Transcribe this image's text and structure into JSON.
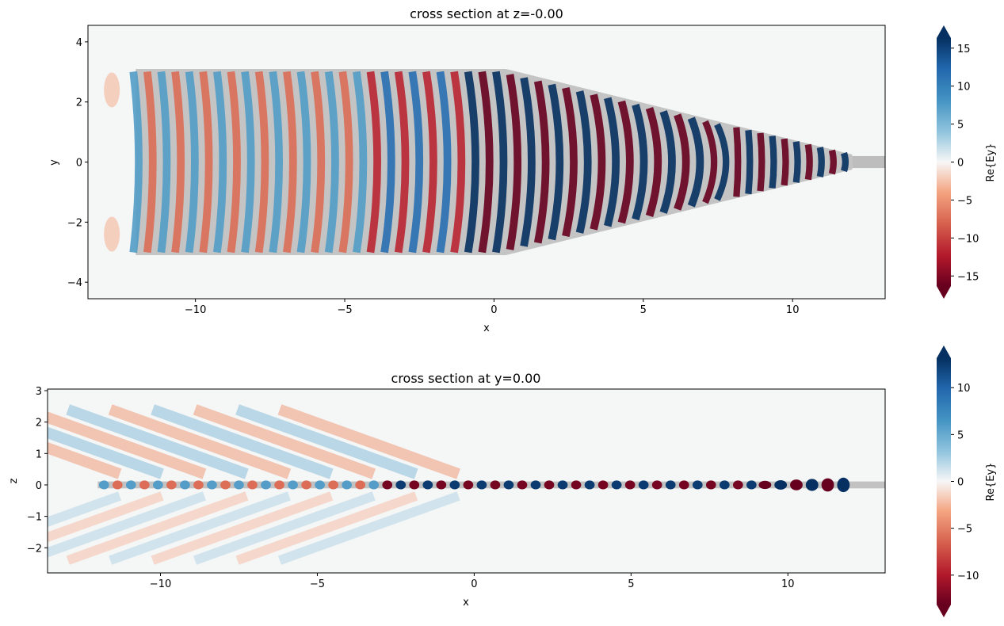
{
  "chart_data": [
    {
      "type": "heatmap",
      "title": "cross section at z=-0.00",
      "xlabel": "x",
      "ylabel": "y",
      "xlim": [
        -13.6,
        13.1
      ],
      "ylim": [
        -4.55,
        4.55
      ],
      "xticks": [
        -10,
        -5,
        0,
        5,
        10
      ],
      "xtick_labels": [
        "−10",
        "−5",
        "0",
        "5",
        "10"
      ],
      "yticks": [
        -4,
        -2,
        0,
        2,
        4
      ],
      "ytick_labels": [
        "−4",
        "−2",
        "0",
        "2",
        "4"
      ],
      "structure": {
        "name": "tapered waveguide",
        "wide_section": {
          "x_start": -12.0,
          "x_end": 0.4,
          "half_width": 3.1
        },
        "taper_end": {
          "x": 12.0,
          "half_width": 0.25
        },
        "output_waveguide": {
          "x_start": 12.0,
          "x_end": 13.1,
          "half_width": 0.2
        }
      },
      "colorbar": {
        "label": "Re{Ey}",
        "range": [
          -18,
          18
        ],
        "ticks": [
          15,
          10,
          5,
          0,
          -5,
          -10,
          -15
        ],
        "tick_labels": [
          "15",
          "10",
          "5",
          "0",
          "−5",
          "−10",
          "−15"
        ],
        "cmap": "RdBu"
      }
    },
    {
      "type": "heatmap",
      "title": "cross section at y=0.00",
      "xlabel": "x",
      "ylabel": "z",
      "xlim": [
        -13.6,
        13.1
      ],
      "ylim": [
        -2.8,
        3.05
      ],
      "xticks": [
        -10,
        -5,
        0,
        5,
        10
      ],
      "xtick_labels": [
        "−10",
        "−5",
        "0",
        "5",
        "10"
      ],
      "yticks": [
        -2,
        -1,
        0,
        1,
        2,
        3
      ],
      "ytick_labels": [
        "−2",
        "−1",
        "0",
        "1",
        "2",
        "3"
      ],
      "structure": {
        "name": "waveguide core",
        "x_start": -12.0,
        "x_end": 13.1,
        "half_thickness": 0.11
      },
      "colorbar": {
        "label": "Re{Ey}",
        "range": [
          -14.5,
          14.5
        ],
        "ticks": [
          10,
          5,
          0,
          -5,
          -10
        ],
        "tick_labels": [
          "10",
          "5",
          "0",
          "−5",
          "−10"
        ],
        "cmap": "RdBu"
      }
    }
  ]
}
